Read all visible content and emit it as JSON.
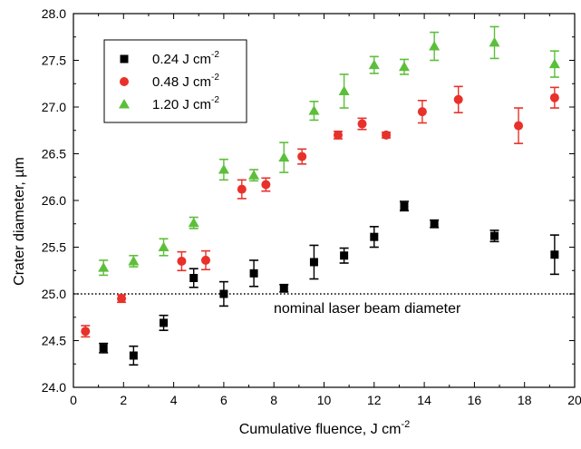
{
  "chart_data": {
    "type": "scatter",
    "xlabel": "Cumulative fluence, J cm",
    "xlabel_sup": "-2",
    "ylabel": "Crater diameter, µm",
    "xlim": [
      0,
      20
    ],
    "ylim": [
      24.0,
      28.0
    ],
    "x_ticks": [
      0,
      2,
      4,
      6,
      8,
      10,
      12,
      14,
      16,
      18,
      20
    ],
    "x_tick_labels": [
      "0",
      "2",
      "4",
      "6",
      "8",
      "10",
      "12",
      "14",
      "16",
      "18",
      "20"
    ],
    "y_ticks": [
      24.0,
      24.5,
      25.0,
      25.5,
      26.0,
      26.5,
      27.0,
      27.5,
      28.0
    ],
    "y_tick_labels": [
      "24.0",
      "24.5",
      "25.0",
      "25.5",
      "26.0",
      "26.5",
      "27.0",
      "27.5",
      "28.0"
    ],
    "grid": false,
    "legend_position": "top-left",
    "reference_line": {
      "y": 25.0,
      "style": "dotted",
      "label": "nominal laser beam diameter"
    },
    "series": [
      {
        "name": "0.24 J cm",
        "name_sup": "-2",
        "marker": "square",
        "color": "#000000",
        "points": [
          {
            "x": 1.2,
            "y": 24.42,
            "err": 0.05
          },
          {
            "x": 2.4,
            "y": 24.34,
            "err": 0.1
          },
          {
            "x": 3.6,
            "y": 24.69,
            "err": 0.08
          },
          {
            "x": 4.8,
            "y": 25.17,
            "err": 0.1
          },
          {
            "x": 6.0,
            "y": 25.0,
            "err": 0.13
          },
          {
            "x": 7.2,
            "y": 25.22,
            "err": 0.14
          },
          {
            "x": 8.4,
            "y": 25.06,
            "err": 0.04
          },
          {
            "x": 9.6,
            "y": 25.34,
            "err": 0.18
          },
          {
            "x": 10.8,
            "y": 25.41,
            "err": 0.08
          },
          {
            "x": 12.0,
            "y": 25.61,
            "err": 0.11
          },
          {
            "x": 13.2,
            "y": 25.94,
            "err": 0.05
          },
          {
            "x": 14.4,
            "y": 25.75,
            "err": 0.04
          },
          {
            "x": 16.8,
            "y": 25.62,
            "err": 0.06
          },
          {
            "x": 19.2,
            "y": 25.42,
            "err": 0.21
          }
        ]
      },
      {
        "name": "0.48 J cm",
        "name_sup": "-2",
        "marker": "circle",
        "color": "#e8312a",
        "points": [
          {
            "x": 0.48,
            "y": 24.6,
            "err": 0.06
          },
          {
            "x": 1.92,
            "y": 24.95,
            "err": 0.04
          },
          {
            "x": 4.32,
            "y": 25.35,
            "err": 0.1
          },
          {
            "x": 5.28,
            "y": 25.36,
            "err": 0.1
          },
          {
            "x": 6.72,
            "y": 26.12,
            "err": 0.1
          },
          {
            "x": 7.68,
            "y": 26.17,
            "err": 0.07
          },
          {
            "x": 9.12,
            "y": 26.47,
            "err": 0.08
          },
          {
            "x": 10.56,
            "y": 26.7,
            "err": 0.04
          },
          {
            "x": 12.48,
            "y": 26.7,
            "err": 0.03
          },
          {
            "x": 11.52,
            "y": 26.82,
            "err": 0.06
          },
          {
            "x": 13.92,
            "y": 26.95,
            "err": 0.12
          },
          {
            "x": 15.36,
            "y": 27.08,
            "err": 0.14
          },
          {
            "x": 17.76,
            "y": 26.8,
            "err": 0.19
          },
          {
            "x": 19.2,
            "y": 27.1,
            "err": 0.11
          }
        ]
      },
      {
        "name": "1.20 J cm",
        "name_sup": "-2",
        "marker": "triangle",
        "color": "#5cbf3a",
        "points": [
          {
            "x": 1.2,
            "y": 25.28,
            "err": 0.08
          },
          {
            "x": 2.4,
            "y": 25.35,
            "err": 0.06
          },
          {
            "x": 3.6,
            "y": 25.5,
            "err": 0.09
          },
          {
            "x": 4.8,
            "y": 25.76,
            "err": 0.06
          },
          {
            "x": 6.0,
            "y": 26.33,
            "err": 0.11
          },
          {
            "x": 7.2,
            "y": 26.27,
            "err": 0.06
          },
          {
            "x": 8.4,
            "y": 26.46,
            "err": 0.16
          },
          {
            "x": 9.6,
            "y": 26.96,
            "err": 0.1
          },
          {
            "x": 10.8,
            "y": 27.17,
            "err": 0.18
          },
          {
            "x": 12.0,
            "y": 27.45,
            "err": 0.09
          },
          {
            "x": 13.2,
            "y": 27.43,
            "err": 0.08
          },
          {
            "x": 14.4,
            "y": 27.65,
            "err": 0.15
          },
          {
            "x": 16.8,
            "y": 27.69,
            "err": 0.17
          },
          {
            "x": 19.2,
            "y": 27.46,
            "err": 0.14
          }
        ]
      }
    ]
  }
}
